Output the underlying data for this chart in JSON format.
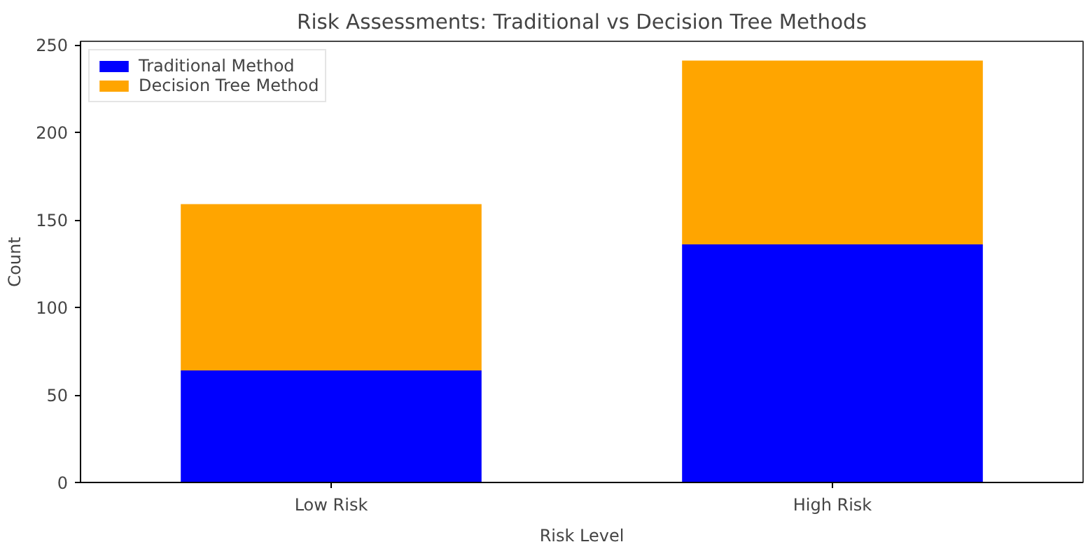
{
  "chart_data": {
    "type": "bar",
    "title": "Risk Assessments: Traditional vs Decision Tree Methods",
    "xlabel": "Risk Level",
    "ylabel": "Count",
    "categories": [
      "Low Risk",
      "High Risk"
    ],
    "stacked": true,
    "series": [
      {
        "name": "Traditional Method",
        "color": "#0000ff",
        "values": [
          64,
          136
        ]
      },
      {
        "name": "Decision Tree Method",
        "color": "#ffa500",
        "values": [
          95,
          105
        ]
      }
    ],
    "ylim": [
      0,
      252
    ],
    "yticks": [
      0,
      50,
      100,
      150,
      200,
      250
    ],
    "grid": false,
    "legend": "top left"
  }
}
